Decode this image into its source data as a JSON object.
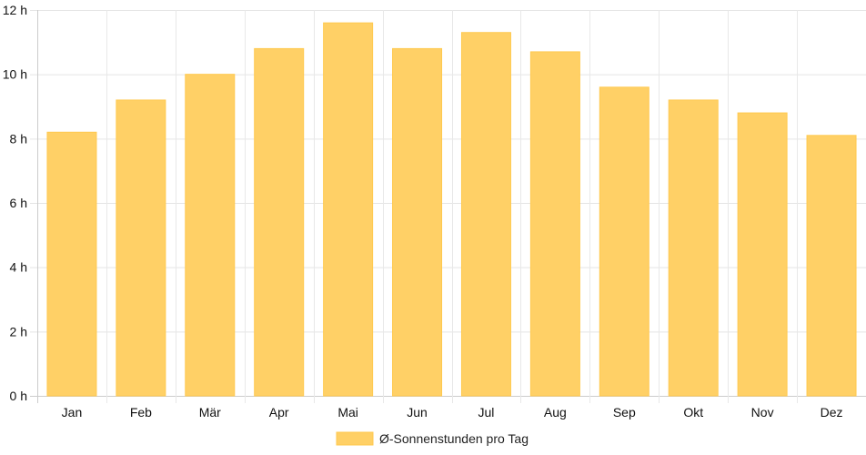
{
  "chart_data": {
    "type": "bar",
    "categories": [
      "Jan",
      "Feb",
      "Mär",
      "Apr",
      "Mai",
      "Jun",
      "Jul",
      "Aug",
      "Sep",
      "Okt",
      "Nov",
      "Dez"
    ],
    "series": [
      {
        "name": "Ø-Sonnenstunden pro Tag",
        "values": [
          8.2,
          9.2,
          10.0,
          10.8,
          11.6,
          10.8,
          11.3,
          10.7,
          9.6,
          9.2,
          8.8,
          8.1
        ],
        "color": "#FFD066"
      }
    ],
    "y_ticks": [
      "0 h",
      "2 h",
      "4 h",
      "6 h",
      "8 h",
      "10 h",
      "12 h"
    ],
    "ylim": [
      0,
      12
    ],
    "grid": true,
    "legend_position": "bottom"
  }
}
